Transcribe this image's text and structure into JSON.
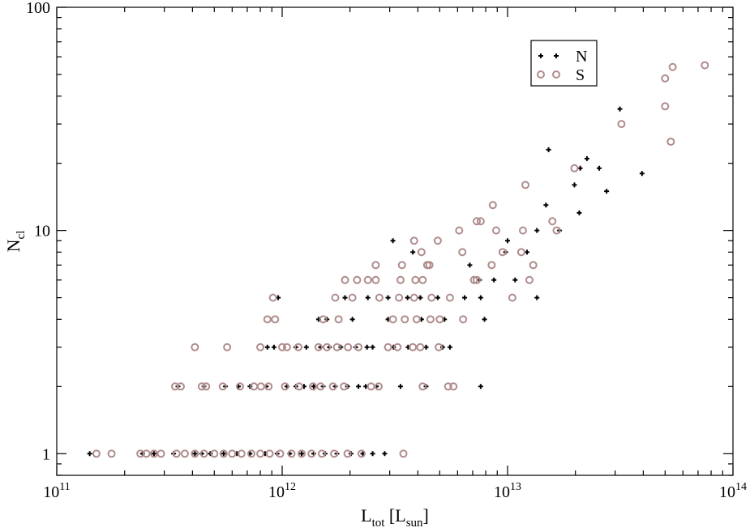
{
  "chart_data": {
    "type": "scatter",
    "xscale": "log",
    "yscale": "log",
    "xlim": [
      100000000000.0,
      100000000000000.0
    ],
    "ylim": [
      0.8,
      100
    ],
    "x_ticks": [
      100000000000.0,
      1000000000000.0,
      10000000000000.0,
      100000000000000.0
    ],
    "x_tick_labels": [
      {
        "base": "10",
        "exp": "11"
      },
      {
        "base": "10",
        "exp": "12"
      },
      {
        "base": "10",
        "exp": "13"
      },
      {
        "base": "10",
        "exp": "14"
      }
    ],
    "y_ticks": [
      1,
      10,
      100
    ],
    "y_tick_labels": [
      "1",
      "10",
      "100"
    ],
    "xlabel": {
      "main": "L",
      "sub1": "tot",
      "mid": " [L",
      "sub2": "sun",
      "end": "]"
    },
    "ylabel": {
      "main": "N",
      "sub": "cl"
    },
    "grid": false,
    "legend_position": "top-right",
    "series": [
      {
        "name": "N",
        "marker": "plus",
        "color": "#000000",
        "points": [
          [
            140000000000.0,
            1
          ],
          [
            240000000000.0,
            1
          ],
          [
            270000000000.0,
            1
          ],
          [
            330000000000.0,
            1
          ],
          [
            410000000000.0,
            1
          ],
          [
            440000000000.0,
            1
          ],
          [
            480000000000.0,
            1
          ],
          [
            550000000000.0,
            1
          ],
          [
            630000000000.0,
            1
          ],
          [
            720000000000.0,
            1
          ],
          [
            840000000000.0,
            1
          ],
          [
            950000000000.0,
            1
          ],
          [
            1080000000000.0,
            1
          ],
          [
            1220000000000.0,
            1
          ],
          [
            1380000000000.0,
            1
          ],
          [
            1550000000000.0,
            1
          ],
          [
            1750000000000.0,
            1
          ],
          [
            2020000000000.0,
            1
          ],
          [
            2280000000000.0,
            1
          ],
          [
            2520000000000.0,
            1
          ],
          [
            2850000000000.0,
            1
          ],
          [
            345000000000.0,
            2
          ],
          [
            450000000000.0,
            2
          ],
          [
            560000000000.0,
            2
          ],
          [
            640000000000.0,
            2
          ],
          [
            720000000000.0,
            2
          ],
          [
            850000000000.0,
            2
          ],
          [
            1050000000000.0,
            2
          ],
          [
            1150000000000.0,
            2
          ],
          [
            1250000000000.0,
            2
          ],
          [
            1380000000000.0,
            2
          ],
          [
            1520000000000.0,
            2
          ],
          [
            1720000000000.0,
            2
          ],
          [
            1950000000000.0,
            2
          ],
          [
            2180000000000.0,
            2
          ],
          [
            2350000000000.0,
            2
          ],
          [
            2620000000000.0,
            2
          ],
          [
            3350000000000.0,
            2
          ],
          [
            4350000000000.0,
            2
          ],
          [
            7600000000000.0,
            2
          ],
          [
            860000000000.0,
            3
          ],
          [
            920000000000.0,
            3
          ],
          [
            1150000000000.0,
            3
          ],
          [
            1280000000000.0,
            3
          ],
          [
            1480000000000.0,
            3
          ],
          [
            1620000000000.0,
            3
          ],
          [
            1820000000000.0,
            3
          ],
          [
            2120000000000.0,
            3
          ],
          [
            2380000000000.0,
            3
          ],
          [
            2520000000000.0,
            3
          ],
          [
            3120000000000.0,
            3
          ],
          [
            3620000000000.0,
            3
          ],
          [
            4350000000000.0,
            3
          ],
          [
            5150000000000.0,
            3
          ],
          [
            5550000000000.0,
            3
          ],
          [
            1450000000000.0,
            4
          ],
          [
            1580000000000.0,
            4
          ],
          [
            2050000000000.0,
            4
          ],
          [
            2950000000000.0,
            4
          ],
          [
            4150000000000.0,
            4
          ],
          [
            5250000000000.0,
            4
          ],
          [
            7900000000000.0,
            4
          ],
          [
            960000000000.0,
            5
          ],
          [
            1900000000000.0,
            5
          ],
          [
            2400000000000.0,
            5
          ],
          [
            2950000000000.0,
            5
          ],
          [
            3600000000000.0,
            5
          ],
          [
            4100000000000.0,
            5
          ],
          [
            4900000000000.0,
            5
          ],
          [
            6450000000000.0,
            5
          ],
          [
            7600000000000.0,
            5
          ],
          [
            7500000000000.0,
            6
          ],
          [
            8700000000000.0,
            6
          ],
          [
            10800000000000.0,
            6
          ],
          [
            6800000000000.0,
            7
          ],
          [
            3800000000000.0,
            8
          ],
          [
            9800000000000.0,
            8
          ],
          [
            12200000000000.0,
            8
          ],
          [
            3100000000000.0,
            9
          ],
          [
            10000000000000.0,
            9
          ],
          [
            13500000000000.0,
            10
          ],
          [
            17000000000000.0,
            10
          ],
          [
            13500000000000.0,
            5
          ],
          [
            14800000000000.0,
            13
          ],
          [
            19800000000000.0,
            16
          ],
          [
            20800000000000.0,
            12
          ],
          [
            21000000000000.0,
            19
          ],
          [
            22500000000000.0,
            21
          ],
          [
            25500000000000.0,
            19
          ],
          [
            27500000000000.0,
            15
          ],
          [
            15200000000000.0,
            23
          ],
          [
            31500000000000.0,
            35
          ],
          [
            39500000000000.0,
            18
          ]
        ]
      },
      {
        "name": "S",
        "marker": "circle",
        "color": "#b08c8c",
        "points": [
          [
            150000000000.0,
            1
          ],
          [
            175000000000.0,
            1
          ],
          [
            235000000000.0,
            1
          ],
          [
            250000000000.0,
            1
          ],
          [
            270000000000.0,
            1
          ],
          [
            290000000000.0,
            1
          ],
          [
            340000000000.0,
            1
          ],
          [
            370000000000.0,
            1
          ],
          [
            410000000000.0,
            1
          ],
          [
            450000000000.0,
            1
          ],
          [
            500000000000.0,
            1
          ],
          [
            550000000000.0,
            1
          ],
          [
            600000000000.0,
            1
          ],
          [
            660000000000.0,
            1
          ],
          [
            730000000000.0,
            1
          ],
          [
            800000000000.0,
            1
          ],
          [
            880000000000.0,
            1
          ],
          [
            980000000000.0,
            1
          ],
          [
            1100000000000.0,
            1
          ],
          [
            1220000000000.0,
            1
          ],
          [
            1350000000000.0,
            1
          ],
          [
            1500000000000.0,
            1
          ],
          [
            1700000000000.0,
            1
          ],
          [
            1950000000000.0,
            1
          ],
          [
            2250000000000.0,
            1
          ],
          [
            3450000000000.0,
            1
          ],
          [
            335000000000.0,
            2
          ],
          [
            355000000000.0,
            2
          ],
          [
            440000000000.0,
            2
          ],
          [
            460000000000.0,
            2
          ],
          [
            545000000000.0,
            2
          ],
          [
            650000000000.0,
            2
          ],
          [
            750000000000.0,
            2
          ],
          [
            805000000000.0,
            2
          ],
          [
            870000000000.0,
            2
          ],
          [
            1030000000000.0,
            2
          ],
          [
            1190000000000.0,
            2
          ],
          [
            1370000000000.0,
            2
          ],
          [
            1480000000000.0,
            2
          ],
          [
            1680000000000.0,
            2
          ],
          [
            1880000000000.0,
            2
          ],
          [
            2480000000000.0,
            2
          ],
          [
            2680000000000.0,
            2
          ],
          [
            4200000000000.0,
            2
          ],
          [
            5450000000000.0,
            2
          ],
          [
            5750000000000.0,
            2
          ],
          [
            410000000000.0,
            3
          ],
          [
            570000000000.0,
            3
          ],
          [
            800000000000.0,
            3
          ],
          [
            1000000000000.0,
            3
          ],
          [
            1050000000000.0,
            3
          ],
          [
            1180000000000.0,
            3
          ],
          [
            1450000000000.0,
            3
          ],
          [
            1580000000000.0,
            3
          ],
          [
            1750000000000.0,
            3
          ],
          [
            1960000000000.0,
            3
          ],
          [
            2180000000000.0,
            3
          ],
          [
            2950000000000.0,
            3
          ],
          [
            3250000000000.0,
            3
          ],
          [
            3800000000000.0,
            3
          ],
          [
            4100000000000.0,
            3
          ],
          [
            4950000000000.0,
            3
          ],
          [
            860000000000.0,
            4
          ],
          [
            930000000000.0,
            4
          ],
          [
            1520000000000.0,
            4
          ],
          [
            1780000000000.0,
            4
          ],
          [
            3100000000000.0,
            4
          ],
          [
            3500000000000.0,
            4
          ],
          [
            3950000000000.0,
            4
          ],
          [
            4550000000000.0,
            4
          ],
          [
            5000000000000.0,
            4
          ],
          [
            6350000000000.0,
            4
          ],
          [
            910000000000.0,
            5
          ],
          [
            1720000000000.0,
            5
          ],
          [
            2050000000000.0,
            5
          ],
          [
            2700000000000.0,
            5
          ],
          [
            3300000000000.0,
            5
          ],
          [
            3850000000000.0,
            5
          ],
          [
            4600000000000.0,
            5
          ],
          [
            5550000000000.0,
            5
          ],
          [
            1900000000000.0,
            6
          ],
          [
            2150000000000.0,
            6
          ],
          [
            2400000000000.0,
            6
          ],
          [
            2600000000000.0,
            6
          ],
          [
            3350000000000.0,
            6
          ],
          [
            3900000000000.0,
            6
          ],
          [
            4200000000000.0,
            6
          ],
          [
            7100000000000.0,
            6
          ],
          [
            7300000000000.0,
            6
          ],
          [
            12500000000000.0,
            6
          ],
          [
            2600000000000.0,
            7
          ],
          [
            3400000000000.0,
            7
          ],
          [
            4400000000000.0,
            7
          ],
          [
            4500000000000.0,
            7
          ],
          [
            8500000000000.0,
            7
          ],
          [
            13000000000000.0,
            7
          ],
          [
            4150000000000.0,
            8
          ],
          [
            6300000000000.0,
            8
          ],
          [
            9500000000000.0,
            8
          ],
          [
            11500000000000.0,
            8
          ],
          [
            3850000000000.0,
            9
          ],
          [
            4900000000000.0,
            9
          ],
          [
            11700000000000.0,
            10
          ],
          [
            16500000000000.0,
            10
          ],
          [
            8900000000000.0,
            10
          ],
          [
            6100000000000.0,
            10
          ],
          [
            10500000000000.0,
            5
          ],
          [
            7300000000000.0,
            11
          ],
          [
            7600000000000.0,
            11
          ],
          [
            15800000000000.0,
            11
          ],
          [
            8600000000000.0,
            13
          ],
          [
            12000000000000.0,
            16
          ],
          [
            19800000000000.0,
            19
          ],
          [
            50000000000000.0,
            36
          ],
          [
            53000000000000.0,
            25
          ],
          [
            50000000000000.0,
            48
          ],
          [
            54000000000000.0,
            54
          ],
          [
            75000000000000.0,
            55
          ],
          [
            32000000000000.0,
            30
          ]
        ]
      }
    ]
  }
}
